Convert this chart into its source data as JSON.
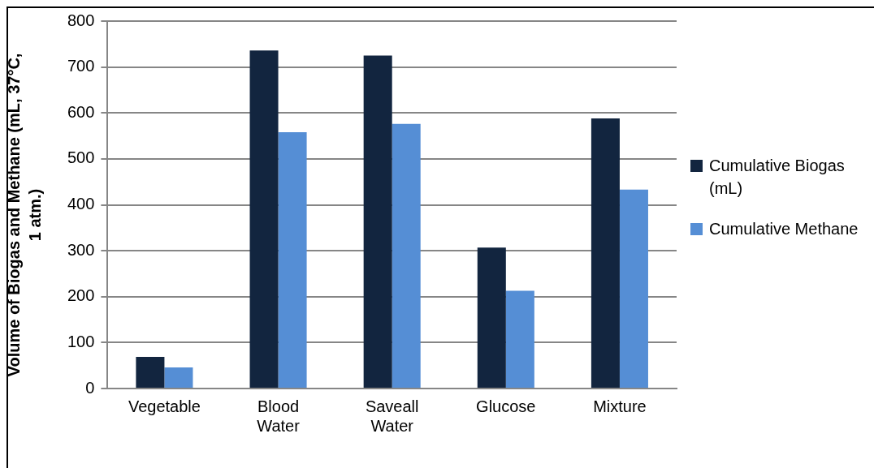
{
  "chart_data": {
    "type": "bar",
    "ylabel": "Volume of Biogas and Methane (mL, 37°C, 1 atm.)",
    "categories": [
      "Vegetable",
      "Blood Water",
      "Saveall Water",
      "Glucose",
      "Mixture"
    ],
    "series": [
      {
        "name": "Cumulative Biogas (mL)",
        "color": "#12253f",
        "values": [
          69,
          736,
          725,
          307,
          588
        ]
      },
      {
        "name": "Cumulative Methane",
        "color": "#558ed5",
        "values": [
          46,
          558,
          576,
          213,
          433
        ]
      }
    ],
    "ylim": [
      0,
      800
    ],
    "yticks": [
      0,
      100,
      200,
      300,
      400,
      500,
      600,
      700,
      800
    ],
    "grid": "y",
    "legend": "right"
  }
}
